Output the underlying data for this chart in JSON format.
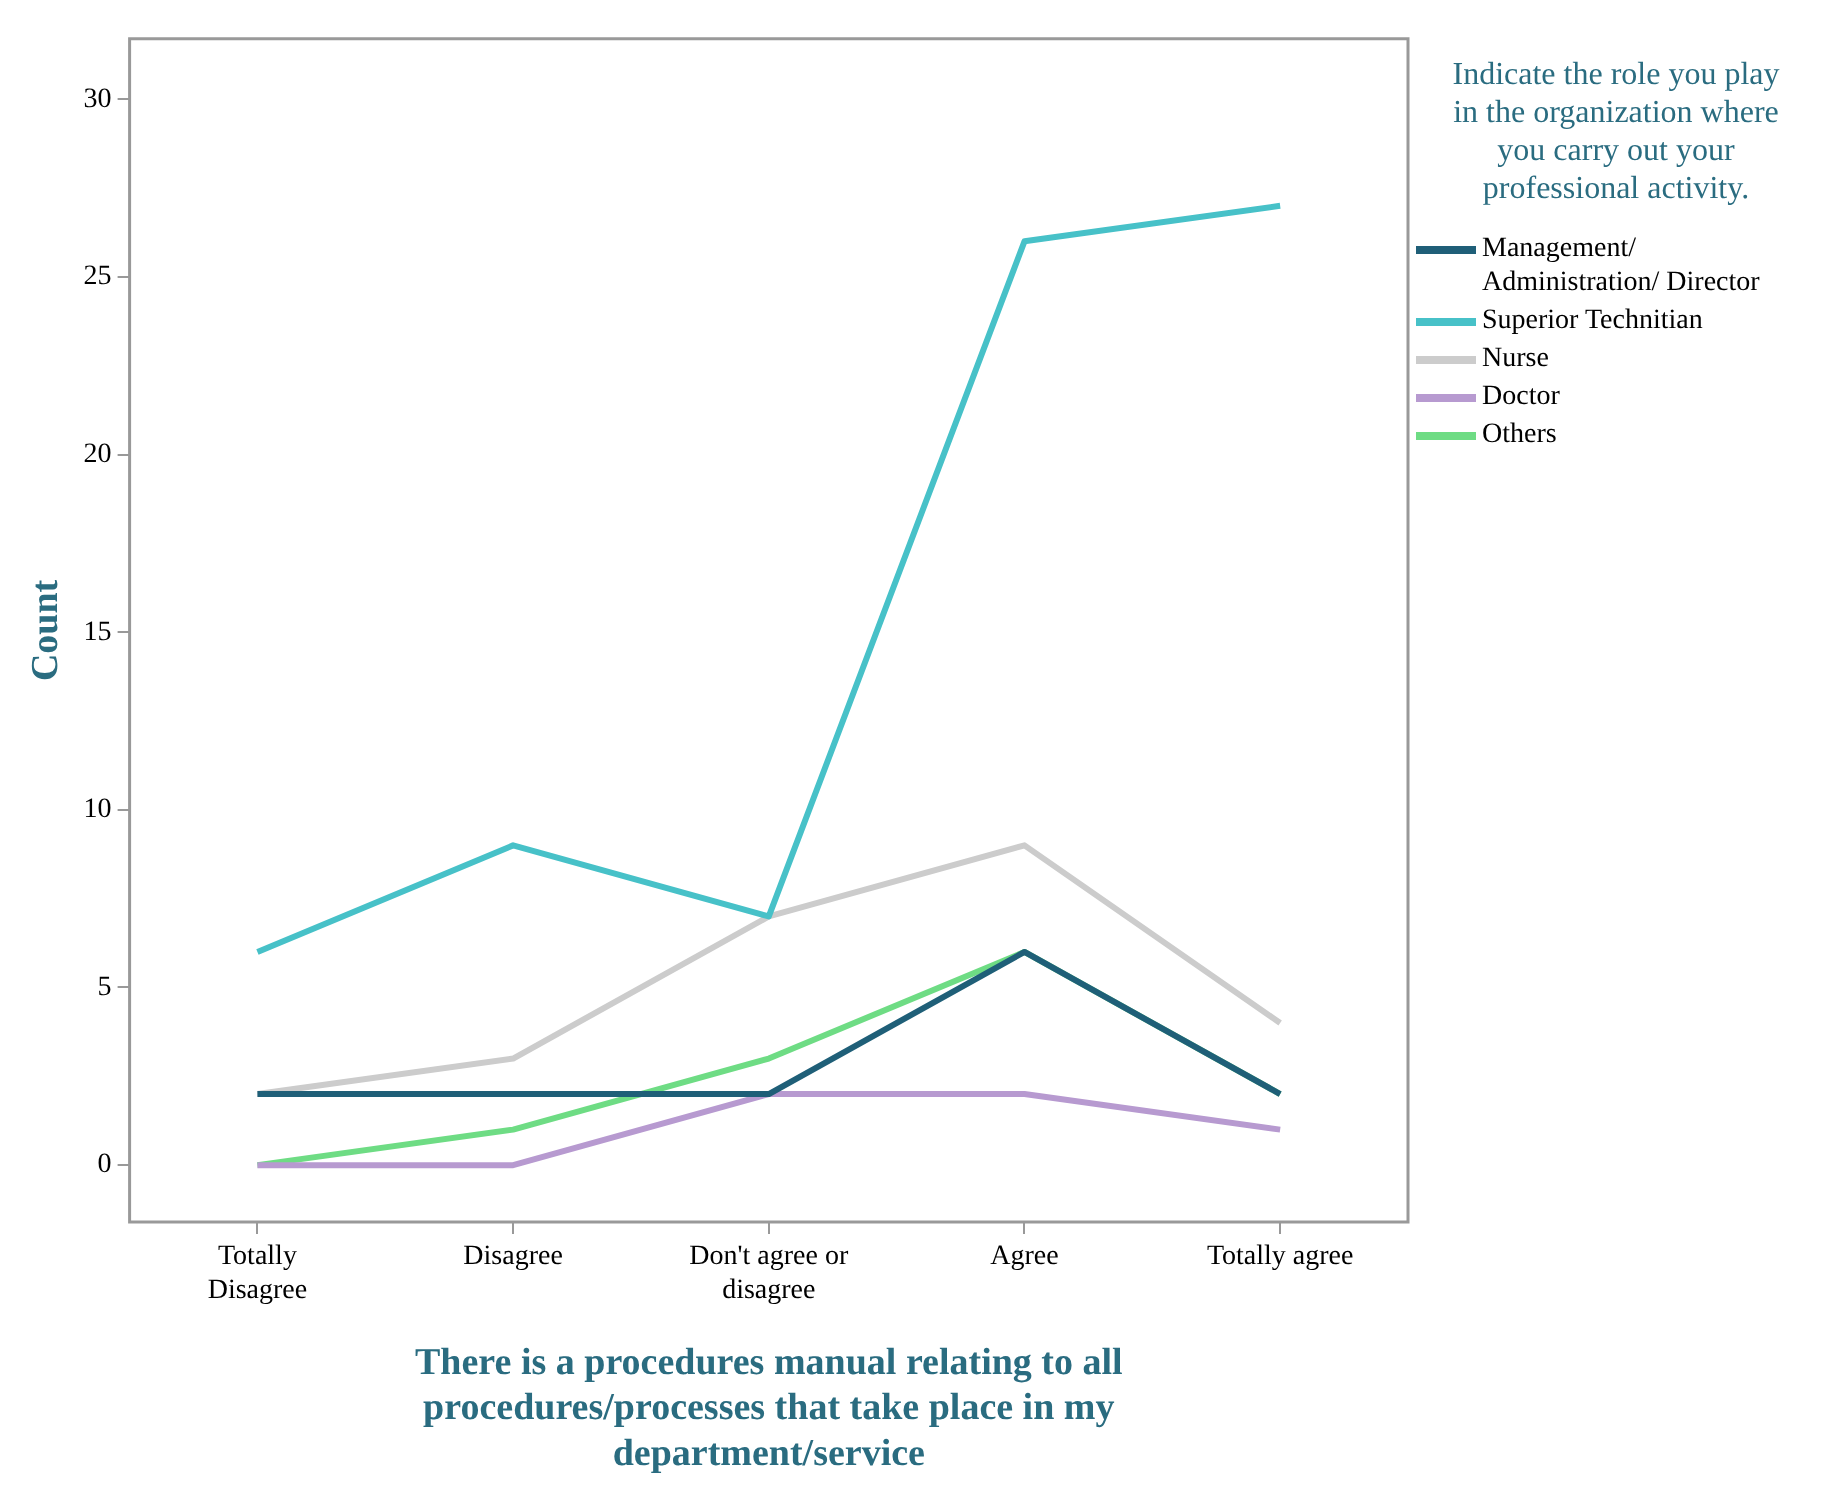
{
  "chart_data": {
    "type": "line",
    "xlabel": "There is a procedures manual relating to all procedures/processes that take place in my department/service",
    "ylabel": "Count",
    "legend_title": "Indicate the role you play in the organization where you carry out your professional activity.",
    "categories": [
      "Totally Disagree",
      "Disagree",
      "Don't agree or disagree",
      "Agree",
      "Totally agree"
    ],
    "ylim": [
      -1.6,
      31.7
    ],
    "yticks": [
      0,
      5,
      10,
      15,
      20,
      25,
      30
    ],
    "grid": false,
    "legend": "right",
    "marker": "none",
    "line_style": "solid",
    "series": [
      {
        "name": "Management/ Administration/ Director",
        "color": "#1f5f78",
        "values": [
          2,
          2,
          2,
          6,
          2
        ]
      },
      {
        "name": "Superior Technitian",
        "color": "#47c1c8",
        "values": [
          6,
          9,
          7,
          26,
          27
        ]
      },
      {
        "name": "Nurse",
        "color": "#cccccc",
        "values": [
          2,
          3,
          7,
          9,
          4
        ]
      },
      {
        "name": "Doctor",
        "color": "#b79ad0",
        "values": [
          0,
          0,
          2,
          2,
          1
        ]
      },
      {
        "name": "Others",
        "color": "#6edc84",
        "values": [
          0,
          1,
          3,
          6,
          2
        ]
      }
    ]
  }
}
